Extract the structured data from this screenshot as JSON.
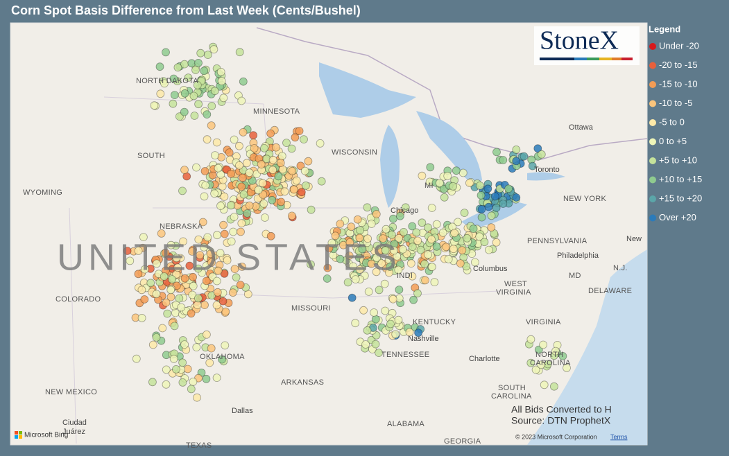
{
  "title": "Corn Spot Basis Difference from Last Week (Cents/Bushel)",
  "logo": "StoneX",
  "legend": {
    "title": "Legend",
    "items": [
      {
        "label": "Under -20",
        "color": "#d7191c"
      },
      {
        "label": "-20 to -15",
        "color": "#e8603c"
      },
      {
        "label": "-15 to -10",
        "color": "#f39c55"
      },
      {
        "label": "-10 to -5",
        "color": "#fbc57c"
      },
      {
        "label": "-5 to 0",
        "color": "#fde9a8"
      },
      {
        "label": "0 to +5",
        "color": "#eef5b8"
      },
      {
        "label": "+5 to +10",
        "color": "#c5e39b"
      },
      {
        "label": "+10 to +15",
        "color": "#8fcb8f"
      },
      {
        "label": "+15 to +20",
        "color": "#5ba6a9"
      },
      {
        "label": "Over +20",
        "color": "#2b7bba"
      }
    ]
  },
  "map_labels": [
    "NORTH DAKOTA",
    "MINNESOTA",
    "SOUTH",
    "WYOMING",
    "UNITED STATES",
    "COLORADO",
    "MISSOURI",
    "KENTUCKY",
    "Nashville",
    "TENNESSEE",
    "OKLAHOMA",
    "ARKANSAS",
    "NEW MEXICO",
    "Dallas",
    "ALABAMA",
    "GEORGIA",
    "TEXAS",
    "Ciudad",
    "Juárez",
    "Chicago",
    "Columbus",
    "WEST",
    "VIRGINIA",
    "VIRGINIA",
    "Charlotte",
    "NORTH",
    "CAROLINA",
    "SOUTH",
    "CAROLINA",
    "PENNSYLVANIA",
    "NEW YORK",
    "Toronto",
    "Ottawa",
    "MD",
    "DELAWARE",
    "N.J.",
    "Philadelphia",
    "WISCONSIN",
    "MI",
    "NEBRASKA",
    "INDI",
    "New"
  ],
  "notes": [
    "All Bids Converted to H",
    "Source: DTN ProphetX"
  ],
  "attribution": {
    "bing": "Microsoft Bing",
    "copyright": "© 2023 Microsoft Corporation",
    "terms": "Terms"
  }
}
